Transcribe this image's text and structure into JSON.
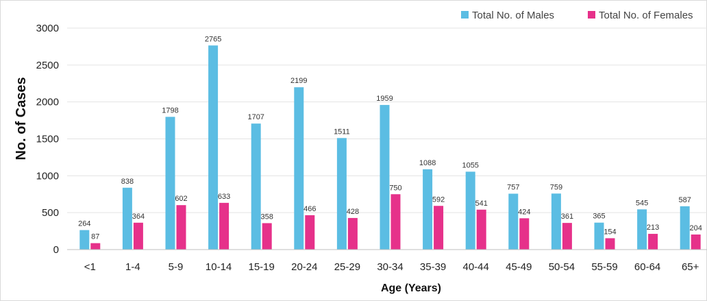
{
  "chart_data": {
    "type": "bar",
    "title": "",
    "xlabel": "Age (Years)",
    "ylabel": "No. of Cases",
    "ylim": [
      0,
      3000
    ],
    "yticks": [
      0,
      500,
      1000,
      1500,
      2000,
      2500,
      3000
    ],
    "grid": true,
    "legend_position": "top-right",
    "categories": [
      "<1",
      "1-4",
      "5-9",
      "10-14",
      "15-19",
      "20-24",
      "25-29",
      "30-34",
      "35-39",
      "40-44",
      "45-49",
      "50-54",
      "55-59",
      "60-64",
      "65+"
    ],
    "series": [
      {
        "name": "Total No. of Males",
        "color": "#5bbde3",
        "values": [
          264,
          838,
          1798,
          2765,
          1707,
          2199,
          1511,
          1959,
          1088,
          1055,
          757,
          759,
          365,
          545,
          587
        ]
      },
      {
        "name": "Total No. of Females",
        "color": "#e6318a",
        "values": [
          87,
          364,
          602,
          633,
          358,
          466,
          428,
          750,
          592,
          541,
          424,
          361,
          154,
          213,
          204
        ]
      }
    ]
  }
}
